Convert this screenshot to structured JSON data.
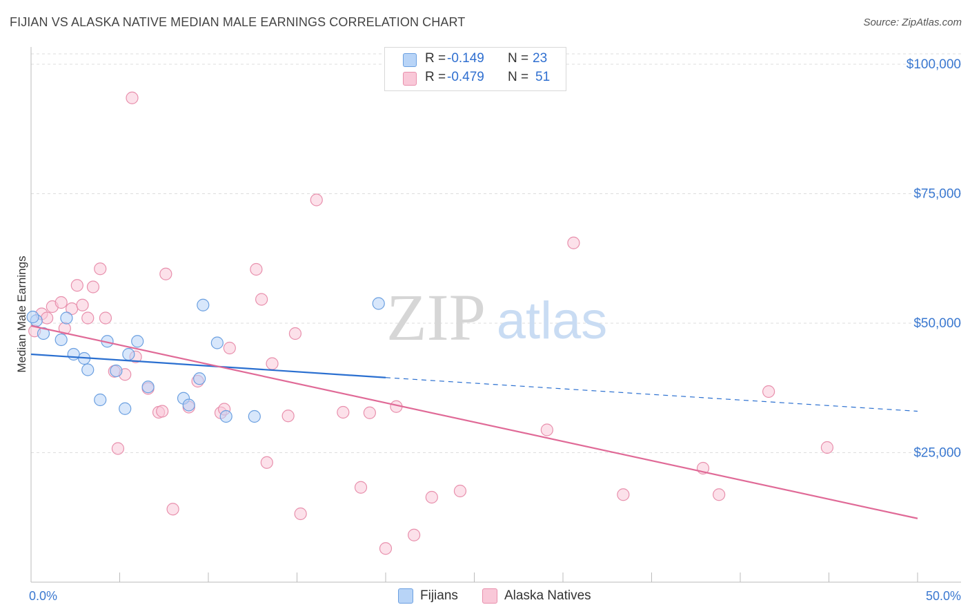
{
  "header": {
    "title": "FIJIAN VS ALASKA NATIVE MEDIAN MALE EARNINGS CORRELATION CHART",
    "source": "Source: ZipAtlas.com"
  },
  "watermark": {
    "zip": "ZIP",
    "atlas": "atlas"
  },
  "legend": {
    "rows": [
      {
        "r_label": "R =",
        "r_value": "-0.149",
        "n_label": "N =",
        "n_value": "23"
      },
      {
        "r_label": "R =",
        "r_value": "-0.479",
        "n_label": "N =",
        "n_value": "51"
      }
    ]
  },
  "bottom_legend": {
    "fijians": "Fijians",
    "alaska": "Alaska Natives"
  },
  "colors": {
    "fijian_fill": "#b8d4f7",
    "fijian_stroke": "#6a9fe0",
    "fijian_line": "#2a6fd0",
    "alaska_fill": "#f9c8d8",
    "alaska_stroke": "#e88fac",
    "alaska_line": "#e06a97",
    "tick_label": "#3a78d0",
    "grid": "#dcdcdc"
  },
  "chart_data": {
    "type": "scatter",
    "title": "FIJIAN VS ALASKA NATIVE MEDIAN MALE EARNINGS CORRELATION CHART",
    "xlabel": "",
    "ylabel": "Median Male Earnings",
    "xlim": [
      0,
      50
    ],
    "ylim": [
      0,
      102000
    ],
    "x_tick_labels": [
      "0.0%",
      "50.0%"
    ],
    "y_ticks": [
      25000,
      50000,
      75000,
      100000
    ],
    "y_tick_labels": [
      "$25,000",
      "$50,000",
      "$75,000",
      "$100,000"
    ],
    "series": [
      {
        "name": "Fijians",
        "points": [
          [
            0.3,
            50500
          ],
          [
            0.7,
            48000
          ],
          [
            1.7,
            46800
          ],
          [
            2.0,
            51000
          ],
          [
            2.4,
            44000
          ],
          [
            3.0,
            43200
          ],
          [
            3.2,
            41000
          ],
          [
            3.9,
            35200
          ],
          [
            4.3,
            46500
          ],
          [
            4.8,
            40800
          ],
          [
            5.3,
            33500
          ],
          [
            5.5,
            44000
          ],
          [
            6.0,
            46500
          ],
          [
            6.6,
            37700
          ],
          [
            8.6,
            35500
          ],
          [
            8.9,
            34200
          ],
          [
            9.5,
            39300
          ],
          [
            9.7,
            53500
          ],
          [
            10.5,
            46200
          ],
          [
            11.0,
            32000
          ],
          [
            12.6,
            32000
          ],
          [
            19.6,
            53800
          ],
          [
            0.1,
            51200
          ]
        ],
        "trend": {
          "x_start": 0,
          "y_start": 44000,
          "x_solid_end": 20,
          "y_solid_end": 39500,
          "x_end": 50,
          "y_end": 33000
        }
      },
      {
        "name": "Alaska Natives",
        "points": [
          [
            0.2,
            48500
          ],
          [
            0.6,
            51800
          ],
          [
            0.9,
            51000
          ],
          [
            1.2,
            53200
          ],
          [
            1.7,
            54000
          ],
          [
            1.9,
            49000
          ],
          [
            2.3,
            52800
          ],
          [
            2.6,
            57300
          ],
          [
            2.9,
            53500
          ],
          [
            3.2,
            51000
          ],
          [
            3.5,
            57000
          ],
          [
            3.9,
            60500
          ],
          [
            4.2,
            51000
          ],
          [
            4.7,
            40700
          ],
          [
            4.9,
            25800
          ],
          [
            5.3,
            40100
          ],
          [
            5.7,
            93500
          ],
          [
            5.9,
            43500
          ],
          [
            6.6,
            37400
          ],
          [
            7.2,
            32800
          ],
          [
            7.4,
            33000
          ],
          [
            7.6,
            59500
          ],
          [
            8.0,
            14100
          ],
          [
            8.9,
            33800
          ],
          [
            9.4,
            38800
          ],
          [
            10.7,
            32700
          ],
          [
            10.9,
            33400
          ],
          [
            11.2,
            45200
          ],
          [
            12.7,
            60400
          ],
          [
            13.0,
            54600
          ],
          [
            13.3,
            23100
          ],
          [
            13.6,
            42200
          ],
          [
            14.5,
            32100
          ],
          [
            14.9,
            48000
          ],
          [
            15.2,
            13200
          ],
          [
            16.1,
            73800
          ],
          [
            17.6,
            32800
          ],
          [
            18.6,
            18300
          ],
          [
            19.1,
            32700
          ],
          [
            20.0,
            6500
          ],
          [
            20.6,
            33900
          ],
          [
            21.6,
            9100
          ],
          [
            22.6,
            16400
          ],
          [
            24.2,
            17600
          ],
          [
            29.1,
            29400
          ],
          [
            30.6,
            65500
          ],
          [
            33.4,
            16900
          ],
          [
            37.9,
            22000
          ],
          [
            38.8,
            16900
          ],
          [
            41.6,
            36800
          ],
          [
            44.9,
            26000
          ]
        ],
        "trend": {
          "x_start": 0,
          "y_start": 49500,
          "x_end": 50,
          "y_end": 12300
        }
      }
    ]
  }
}
